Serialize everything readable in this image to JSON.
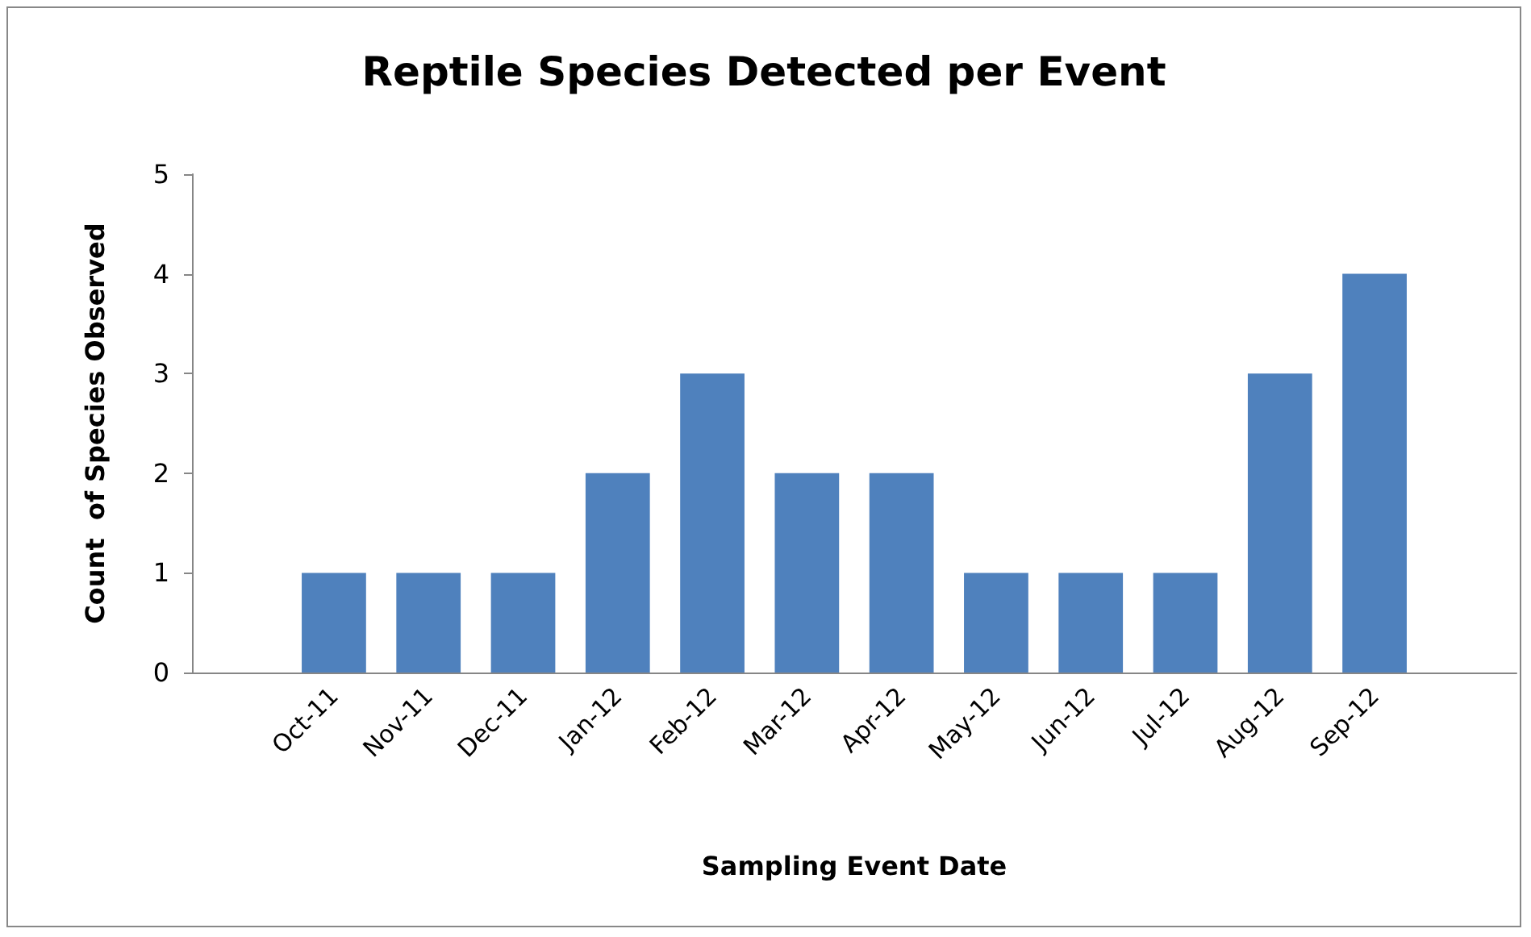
{
  "chart_data": {
    "type": "bar",
    "title": "Reptile Species Detected per Event",
    "xlabel": "Sampling Event Date",
    "ylabel": "Count  of Species Observed",
    "categories": [
      null,
      "Oct-11",
      "Nov-11",
      "Dec-11",
      "Jan-12",
      "Feb-12",
      "Mar-12",
      "Apr-12",
      "May-12",
      "Jun-12",
      "Jul-12",
      "Aug-12",
      "Sep-12",
      null
    ],
    "values": [
      null,
      1,
      1,
      1,
      2,
      3,
      2,
      2,
      1,
      1,
      1,
      3,
      4,
      null
    ],
    "color": "#4f81bd",
    "ylim": [
      0,
      5
    ],
    "yticks": [
      0,
      1,
      2,
      3,
      4,
      5
    ],
    "grid": false
  }
}
